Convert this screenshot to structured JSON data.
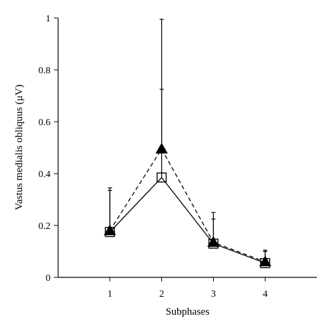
{
  "chart_data": {
    "type": "line",
    "title": "",
    "xlabel": "Subphases",
    "ylabel": "Vastus medialis obliquus (μV)",
    "categories": [
      "1",
      "2",
      "3",
      "4"
    ],
    "x": [
      1,
      2,
      3,
      4
    ],
    "xlim": [
      0,
      5
    ],
    "ylim": [
      0,
      1
    ],
    "yticks": [
      "0",
      "0.2",
      "0.4",
      "0.6",
      "0.8",
      "1"
    ],
    "grid": false,
    "legend": "none",
    "series": [
      {
        "marker": "open-square",
        "line": "solid",
        "values": [
          0.175,
          0.385,
          0.13,
          0.055
        ],
        "error_upper": [
          0.345,
          0.725,
          0.225,
          0.1
        ]
      },
      {
        "marker": "filled-triangle",
        "line": "dashed",
        "values": [
          0.18,
          0.495,
          0.135,
          0.06
        ],
        "error_upper": [
          0.335,
          0.995,
          0.25,
          0.105
        ]
      }
    ]
  }
}
